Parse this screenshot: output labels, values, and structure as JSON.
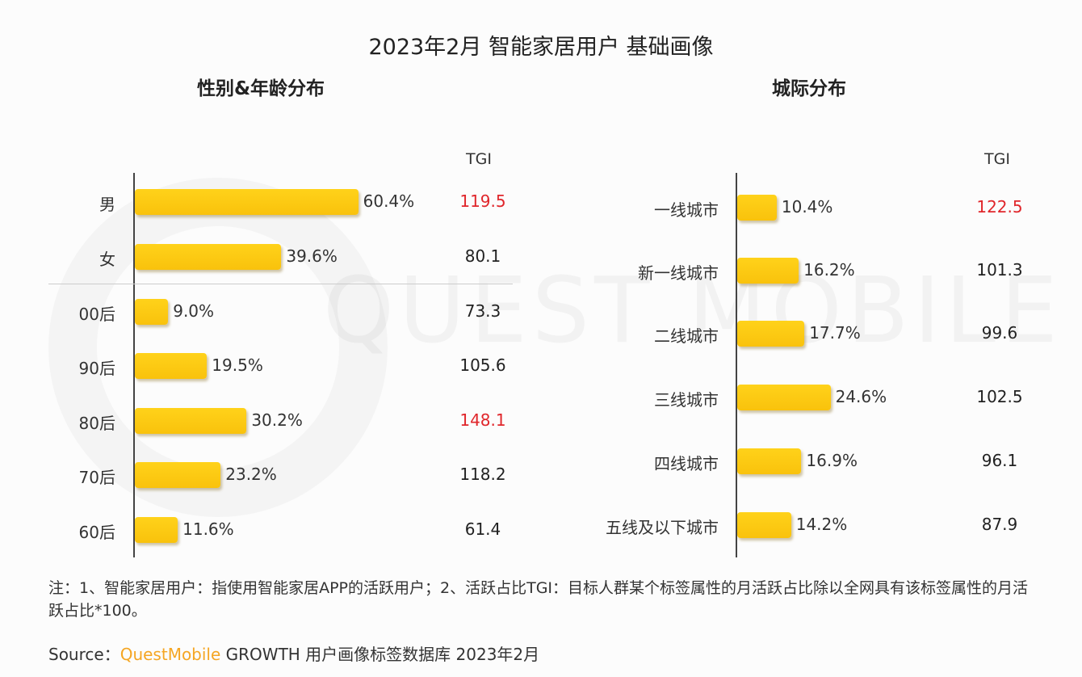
{
  "title": "2023年2月 智能家居用户 基础画像",
  "watermark": "QUEST MOBILE",
  "chart_data": [
    {
      "type": "bar",
      "orientation": "horizontal",
      "title": "性别&年龄分布",
      "value_unit": "%",
      "tgi_header": "TGI",
      "categories": [
        "男",
        "女",
        "00后",
        "90后",
        "80后",
        "70后",
        "60后"
      ],
      "values": [
        60.4,
        39.6,
        9.0,
        19.5,
        30.2,
        23.2,
        11.6
      ],
      "labels": [
        "60.4%",
        "39.6%",
        "9.0%",
        "19.5%",
        "30.2%",
        "23.2%",
        "11.6%"
      ],
      "tgi": [
        "119.5",
        "80.1",
        "73.3",
        "105.6",
        "148.1",
        "118.2",
        "61.4"
      ],
      "tgi_highlight": [
        true,
        false,
        false,
        false,
        true,
        false,
        false
      ],
      "bar_color": "#f9c20c",
      "highlight_color": "#e0262b"
    },
    {
      "type": "bar",
      "orientation": "horizontal",
      "title": "城际分布",
      "value_unit": "%",
      "tgi_header": "TGI",
      "categories": [
        "一线城市",
        "新一线城市",
        "二线城市",
        "三线城市",
        "四线城市",
        "五线及以下城市"
      ],
      "values": [
        10.4,
        16.2,
        17.7,
        24.6,
        16.9,
        14.2
      ],
      "labels": [
        "10.4%",
        "16.2%",
        "17.7%",
        "24.6%",
        "16.9%",
        "14.2%"
      ],
      "tgi": [
        "122.5",
        "101.3",
        "99.6",
        "102.5",
        "96.1",
        "87.9"
      ],
      "tgi_highlight": [
        true,
        false,
        false,
        false,
        false,
        false
      ],
      "bar_color": "#f9c20c",
      "highlight_color": "#e0262b"
    }
  ],
  "note": "注：1、智能家居用户：指使用智能家居APP的活跃用户；2、活跃占比TGI：目标人群某个标签属性的月活跃占比除以全网具有该标签属性的月活跃占比*100。",
  "source": {
    "label": "Source：",
    "brand": "QuestMobile",
    "text": " GROWTH 用户画像标签数据库 2023年2月"
  }
}
